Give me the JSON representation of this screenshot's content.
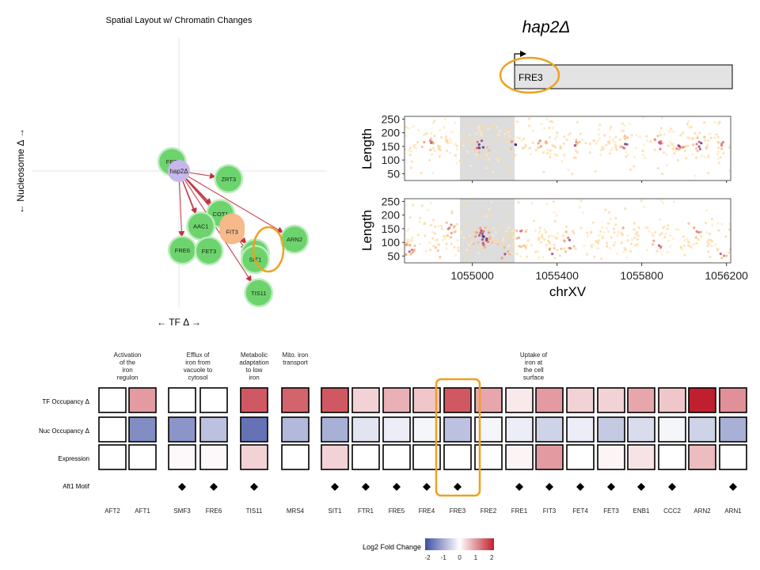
{
  "network": {
    "title": "Spatial Layout w/ Chromatin Changes",
    "xlabel": "← TF Δ →",
    "ylabel": "← Nucleosome Δ →",
    "center_node": "hap2Δ",
    "nodes": [
      {
        "label": "FRE",
        "x": -0.06,
        "y": 0.12,
        "color": "green"
      },
      {
        "label": "hap2Δ",
        "x": 0.0,
        "y": 0.0,
        "color": "purple"
      },
      {
        "label": "ZRT3",
        "x": 0.43,
        "y": -0.1,
        "color": "green"
      },
      {
        "label": "COT1",
        "x": 0.36,
        "y": -0.55,
        "color": "green"
      },
      {
        "label": "AAC1",
        "x": 0.19,
        "y": -0.71,
        "color": "green"
      },
      {
        "label": "ENB1",
        "x": 0.46,
        "y": -0.71,
        "color": "orange"
      },
      {
        "label": "FIT3",
        "x": 0.46,
        "y": -0.78,
        "color": "orange"
      },
      {
        "label": "FRE6",
        "x": 0.03,
        "y": -1.02,
        "color": "green"
      },
      {
        "label": "FET3",
        "x": 0.26,
        "y": -1.03,
        "color": "green"
      },
      {
        "label": "FRE3",
        "x": 0.66,
        "y": -1.06,
        "color": "green"
      },
      {
        "label": "SIT1",
        "x": 0.66,
        "y": -1.14,
        "color": "green"
      },
      {
        "label": "ARN2",
        "x": 1.0,
        "y": -0.88,
        "color": "green"
      },
      {
        "label": "TIS11",
        "x": 0.69,
        "y": -1.57,
        "color": "green"
      }
    ]
  },
  "gene_track": {
    "title": "hap2Δ",
    "gene": "FRE3"
  },
  "density_plots": {
    "ylabel": "Length",
    "xlabel": "chrXV",
    "y_ticks": [
      "250",
      "200",
      "150",
      "100",
      "50"
    ],
    "x_ticks": [
      "1055000",
      "1055400",
      "1055800",
      "1056200"
    ],
    "xlim": [
      1054680,
      1056220
    ],
    "ylim": [
      25,
      260
    ],
    "highlight_range": [
      1054950,
      1055220
    ]
  },
  "chart_data": {
    "type": "heatmap",
    "row_labels": [
      "TF Occupancy Δ",
      "Nuc Occupancy Δ",
      "Expression"
    ],
    "motif_row_label": "Aft1 Motif",
    "genes": [
      "AFT2",
      "AFT1",
      "SMF3",
      "FRE6",
      "TIS11",
      "MRS4",
      "SIT1",
      "FTR1",
      "FRE5",
      "FRE4",
      "FRE3",
      "FRE2",
      "FRE1",
      "FIT3",
      "FET4",
      "FET3",
      "ENB1",
      "CCC2",
      "ARN2",
      "ARN1"
    ],
    "groups": [
      {
        "label": "Activation of the iron regulon",
        "lines": [
          "Activation",
          "of the",
          "iron",
          "regulon"
        ],
        "genes": [
          "AFT2",
          "AFT1"
        ]
      },
      {
        "label": "Efflux of iron from vacuole to cytosol",
        "lines": [
          "Efflux of",
          "iron from",
          "vacuole to",
          "cytosol"
        ],
        "genes": [
          "SMF3",
          "FRE6"
        ]
      },
      {
        "label": "Metabolic adaptation to low iron",
        "lines": [
          "Metabolic",
          "adaptation",
          "to low",
          "iron"
        ],
        "genes": [
          "TIS11"
        ]
      },
      {
        "label": "Mito. iron transport",
        "lines": [
          "Mito. iron",
          "transport"
        ],
        "genes": [
          "MRS4"
        ]
      },
      {
        "label": "Uptake of iron at the cell surface",
        "lines": [
          "Uptake of",
          "iron at",
          "the cell",
          "surface"
        ],
        "genes": [
          "SIT1",
          "FTR1",
          "FRE5",
          "FRE4",
          "FRE3",
          "FRE2",
          "FRE1",
          "FIT3",
          "FET4",
          "FET3",
          "ENB1",
          "CCC2",
          "ARN2",
          "ARN1"
        ]
      }
    ],
    "tf_occupancy": [
      0,
      0.9,
      0,
      0,
      1.5,
      1.4,
      1.5,
      0.4,
      0.7,
      0.5,
      1.5,
      0.8,
      0.2,
      0.9,
      0.4,
      0.4,
      0.8,
      0.5,
      2.2,
      1.0
    ],
    "nuc_occupancy": [
      0,
      -1.3,
      -1.2,
      -0.7,
      -1.6,
      -0.8,
      -0.9,
      -0.3,
      -0.2,
      -0.1,
      -0.7,
      -0.1,
      -0.2,
      -0.5,
      -0.2,
      -0.6,
      -0.4,
      -0.1,
      -0.5,
      -0.9
    ],
    "expression": [
      0,
      0,
      0.05,
      0.05,
      0.4,
      0,
      0.4,
      0,
      0,
      0,
      0,
      0,
      0.1,
      0.9,
      0,
      0.1,
      0.25,
      0,
      0.6,
      0
    ],
    "aft1_motif": [
      false,
      false,
      true,
      true,
      true,
      false,
      true,
      true,
      true,
      true,
      true,
      false,
      true,
      true,
      true,
      true,
      true,
      true,
      false,
      true
    ],
    "highlighted_gene": "FRE3",
    "legend": {
      "title": "Log2 Fold Change",
      "ticks": [
        "-2",
        "-1",
        "0",
        "1",
        "2"
      ],
      "range": [
        -2,
        2
      ],
      "low_color": "#3f4fa3",
      "mid_color": "#ffffff",
      "high_color": "#c0202e"
    }
  },
  "colors": {
    "highlight_ring": "#f0a020",
    "node_green": "#6dd46d",
    "node_purple": "#c7b7ea",
    "node_orange": "#f6b98a",
    "arrow": "#c0333f",
    "gene_box": "#e3e3e3"
  }
}
